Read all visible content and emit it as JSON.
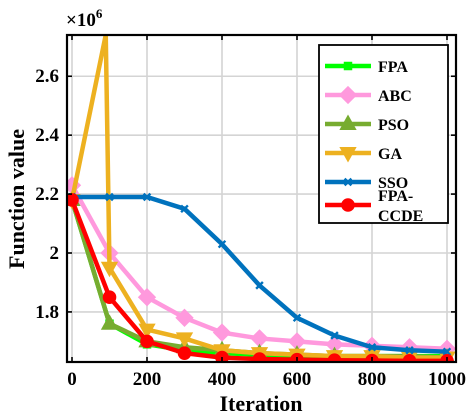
{
  "chart_data": {
    "type": "line",
    "ylabel": "Function value",
    "xlabel": "Iteration",
    "y_exponent_label": "×10",
    "y_exponent_power": "6",
    "xlim": [
      0,
      1000
    ],
    "ylim": [
      1.63,
      2.74
    ],
    "grid": true,
    "legend_position": "top-right",
    "xticks": [
      {
        "value": 0,
        "label": "0"
      },
      {
        "value": 200,
        "label": "200"
      },
      {
        "value": 400,
        "label": "400"
      },
      {
        "value": 600,
        "label": "600"
      },
      {
        "value": 800,
        "label": "800"
      },
      {
        "value": 1000,
        "label": "1000"
      }
    ],
    "yticks": [
      {
        "value": 1.8,
        "label": "1.8"
      },
      {
        "value": 2.0,
        "label": "2"
      },
      {
        "value": 2.2,
        "label": "2.2"
      },
      {
        "value": 2.4,
        "label": "2.4"
      },
      {
        "value": 2.6,
        "label": "2.6"
      }
    ],
    "series": [
      {
        "name": "FPA",
        "color": "#00ff00",
        "marker": "square",
        "x": [
          0,
          100,
          200,
          300,
          400,
          500,
          600,
          700,
          800,
          900,
          1000
        ],
        "y": [
          2.18,
          1.76,
          1.69,
          1.67,
          1.66,
          1.655,
          1.65,
          1.65,
          1.65,
          1.65,
          1.65
        ]
      },
      {
        "name": "ABC",
        "color": "#ff99dd",
        "marker": "diamond",
        "x": [
          0,
          100,
          200,
          300,
          400,
          500,
          600,
          700,
          800,
          900,
          1000
        ],
        "y": [
          2.23,
          2.0,
          1.85,
          1.78,
          1.73,
          1.71,
          1.7,
          1.69,
          1.685,
          1.68,
          1.675
        ]
      },
      {
        "name": "PSO",
        "color": "#77ac30",
        "marker": "triangle-up",
        "x": [
          0,
          100,
          200,
          300,
          400,
          500,
          600,
          700,
          800,
          900,
          1000
        ],
        "y": [
          2.18,
          1.76,
          1.7,
          1.68,
          1.67,
          1.66,
          1.655,
          1.65,
          1.65,
          1.65,
          1.645
        ]
      },
      {
        "name": "GA",
        "color": "#edb120",
        "marker": "triangle-down",
        "x": [
          0,
          90,
          100,
          200,
          300,
          400,
          500,
          600,
          700,
          800,
          900,
          1000
        ],
        "y": [
          2.18,
          2.74,
          1.95,
          1.74,
          1.71,
          1.67,
          1.66,
          1.655,
          1.65,
          1.65,
          1.645,
          1.645
        ]
      },
      {
        "name": "SSO",
        "color": "#0072bd",
        "marker": "x",
        "x": [
          0,
          100,
          200,
          300,
          400,
          500,
          600,
          700,
          800,
          900,
          1000
        ],
        "y": [
          2.19,
          2.19,
          2.19,
          2.15,
          2.03,
          1.89,
          1.78,
          1.72,
          1.68,
          1.67,
          1.665
        ]
      },
      {
        "name": "FPA-\nCCDE",
        "color": "#ff0000",
        "marker": "circle",
        "x": [
          0,
          100,
          200,
          300,
          400,
          500,
          600,
          700,
          800,
          900,
          1000
        ],
        "y": [
          2.18,
          1.85,
          1.7,
          1.66,
          1.645,
          1.64,
          1.638,
          1.636,
          1.635,
          1.634,
          1.634
        ]
      }
    ]
  }
}
